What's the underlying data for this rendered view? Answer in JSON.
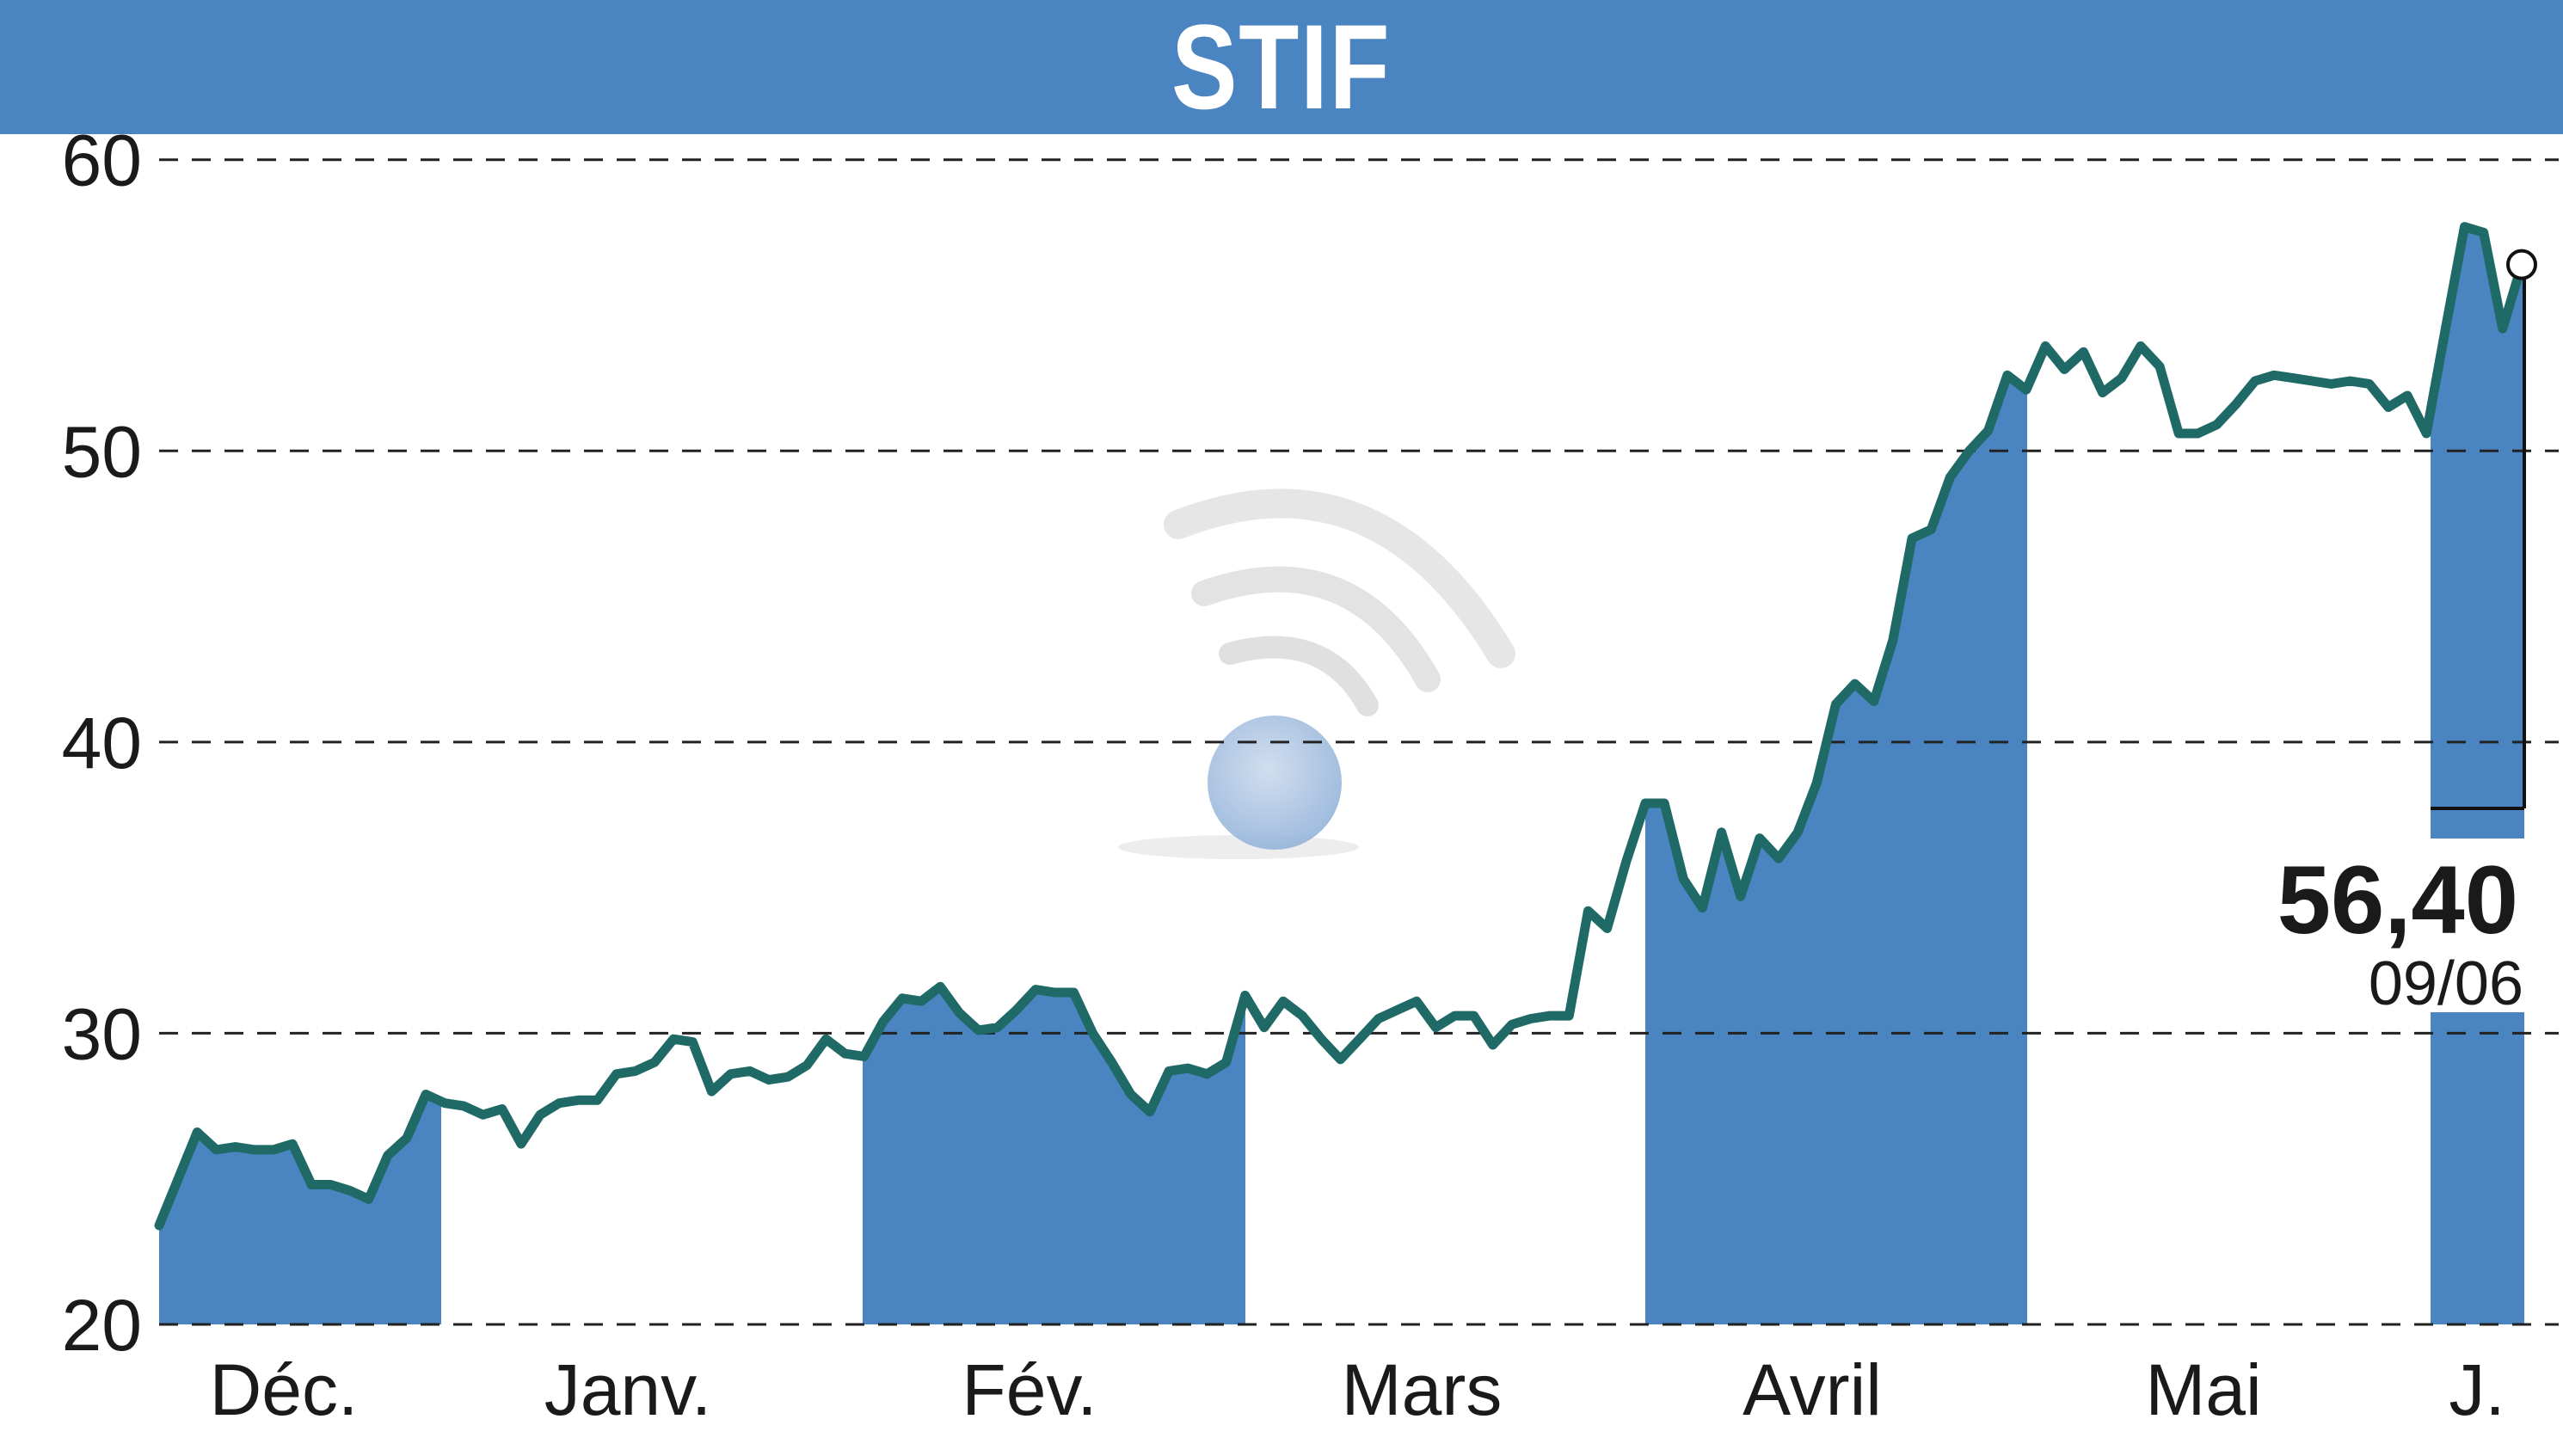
{
  "header": {
    "title": "STIF"
  },
  "colors": {
    "band": "#4a84c1",
    "line": "#1f6a66",
    "grid": "#222222",
    "text": "#1a1a1a"
  },
  "chart_data": {
    "type": "line",
    "title": "STIF",
    "ylim": [
      20,
      62
    ],
    "yticks": [
      {
        "label": "20",
        "value": 20
      },
      {
        "label": "30",
        "value": 30
      },
      {
        "label": "40",
        "value": 40
      },
      {
        "label": "50",
        "value": 50
      },
      {
        "label": "60",
        "value": 60
      }
    ],
    "grid": true,
    "months": [
      {
        "label": "Déc.",
        "shaded": true
      },
      {
        "label": "Janv.",
        "shaded": false
      },
      {
        "label": "Fév.",
        "shaded": true
      },
      {
        "label": "Mars",
        "shaded": false
      },
      {
        "label": "Avril",
        "shaded": true
      },
      {
        "label": "Mai",
        "shaded": false
      },
      {
        "label": "J.",
        "shaded": true
      }
    ],
    "last_value": "56,40",
    "last_date": "09/06",
    "series": [
      {
        "values": [
          23.4,
          25.0,
          26.6,
          26.0,
          26.1,
          26.0,
          26.0,
          26.2,
          24.8,
          24.8,
          24.6,
          24.3,
          25.8,
          26.4,
          27.9,
          27.6,
          27.5,
          27.2,
          27.4,
          26.2,
          27.2,
          27.6,
          27.7,
          27.7,
          28.6,
          28.7,
          29.0,
          29.8,
          29.7,
          28.0,
          28.6,
          28.7,
          28.4,
          28.5,
          28.9,
          29.8,
          29.3,
          29.2,
          30.4,
          31.2,
          31.1,
          31.6,
          30.7,
          30.1,
          30.2,
          30.8,
          31.5,
          31.4,
          31.4,
          30.0,
          29.0,
          27.9,
          27.3,
          28.7,
          28.8,
          28.6,
          29.0,
          31.3,
          30.2,
          31.1,
          30.6,
          29.8,
          29.1,
          29.8,
          30.5,
          30.8,
          31.1,
          30.2,
          30.6,
          30.6,
          29.6,
          30.3,
          30.5,
          30.6,
          30.6,
          34.2,
          33.6,
          35.9,
          37.9,
          37.9,
          35.3,
          34.3,
          36.9,
          34.7,
          36.7,
          36.0,
          36.9,
          38.6,
          41.3,
          42.0,
          41.4,
          43.5,
          47.0,
          47.3,
          49.1,
          50.0,
          50.7,
          52.6,
          52.1,
          53.6,
          52.8,
          53.4,
          52.0,
          52.5,
          53.6,
          52.9,
          50.6,
          50.6,
          50.9,
          51.6,
          52.4,
          52.6,
          52.5,
          52.4,
          52.3,
          52.4,
          52.3,
          51.5,
          51.9,
          50.6,
          54.2,
          57.7,
          57.5,
          54.2,
          56.4
        ]
      }
    ]
  }
}
